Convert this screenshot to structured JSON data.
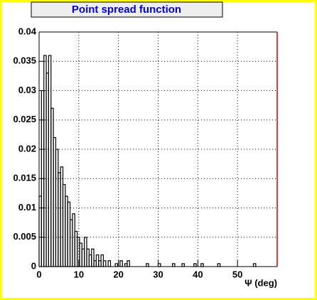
{
  "chart_data": {
    "type": "histogram",
    "title": "Point spread function",
    "x_label": "Ψ (deg)",
    "bins": [
      0,
      0.6,
      1.2,
      1.8,
      2.4,
      3,
      3.6,
      4.2,
      4.8,
      5.4,
      6,
      6.6,
      7.2,
      7.8,
      8.4,
      9,
      9.6,
      10.2,
      10.8,
      11.4,
      12,
      12.6,
      13.2,
      13.8,
      14.4,
      15,
      15.6,
      16.2,
      16.8,
      17.4,
      18,
      18.6,
      19.2,
      19.8,
      20.4,
      21,
      21.6,
      22.2,
      22.8,
      23.4,
      24,
      24.6,
      25.2,
      25.8,
      26.4,
      27,
      27.6,
      28.2,
      28.8,
      29.4,
      30,
      30.6,
      31.2,
      31.8,
      32.4,
      33,
      33.6,
      34.2,
      34.8,
      35.4,
      36,
      36.6,
      37.2,
      37.8,
      38.4,
      39,
      39.6,
      40.2,
      40.8,
      41.4,
      42,
      42.6,
      43.2,
      43.8,
      44.4,
      45,
      45.6,
      46.2,
      46.8,
      47.4,
      48,
      48.6,
      49.2,
      49.8,
      50.4,
      51,
      51.6,
      52.2,
      52.8,
      53.4,
      54,
      54.6,
      55.2,
      55.8,
      56.4,
      57,
      57.6,
      58.2,
      58.8,
      59.4,
      60
    ],
    "counts": [
      0.012,
      0.03,
      0.036,
      0.033,
      0.036,
      0.027,
      0.022,
      0.02,
      0.016,
      0.017,
      0.014,
      0.012,
      0.011,
      0.008,
      0.009,
      0.006,
      0.005,
      0.004,
      0.003,
      0.005,
      0.003,
      0.002,
      0.003,
      0.001,
      0.002,
      0.001,
      0.002,
      0.001,
      0,
      0.001,
      0,
      0,
      0.0005,
      0,
      0.001,
      0,
      0.0005,
      0.001,
      0,
      0,
      0,
      0,
      0,
      0,
      0,
      0.0005,
      0,
      0,
      0,
      0,
      0.0005,
      0,
      0,
      0,
      0,
      0,
      0.0005,
      0,
      0,
      0,
      0.0005,
      0,
      0,
      0,
      0,
      0.0005,
      0,
      0,
      0.0005,
      0,
      0,
      0,
      0,
      0,
      0,
      0.0005,
      0,
      0,
      0,
      0,
      0,
      0,
      0,
      0,
      0,
      0,
      0,
      0,
      0,
      0,
      0.0005,
      0,
      0,
      0,
      0,
      0,
      0,
      0,
      0,
      0
    ],
    "color": "#000000",
    "frame_right_color": "#cc0000",
    "xlim": [
      0,
      60
    ],
    "xticks": [
      0,
      10,
      20,
      30,
      40,
      50
    ],
    "ylim": [
      0,
      0.04
    ],
    "yticks": [
      0,
      0.005,
      0.01,
      0.015,
      0.02,
      0.025,
      0.03,
      0.035,
      0.04
    ],
    "grid": true
  }
}
